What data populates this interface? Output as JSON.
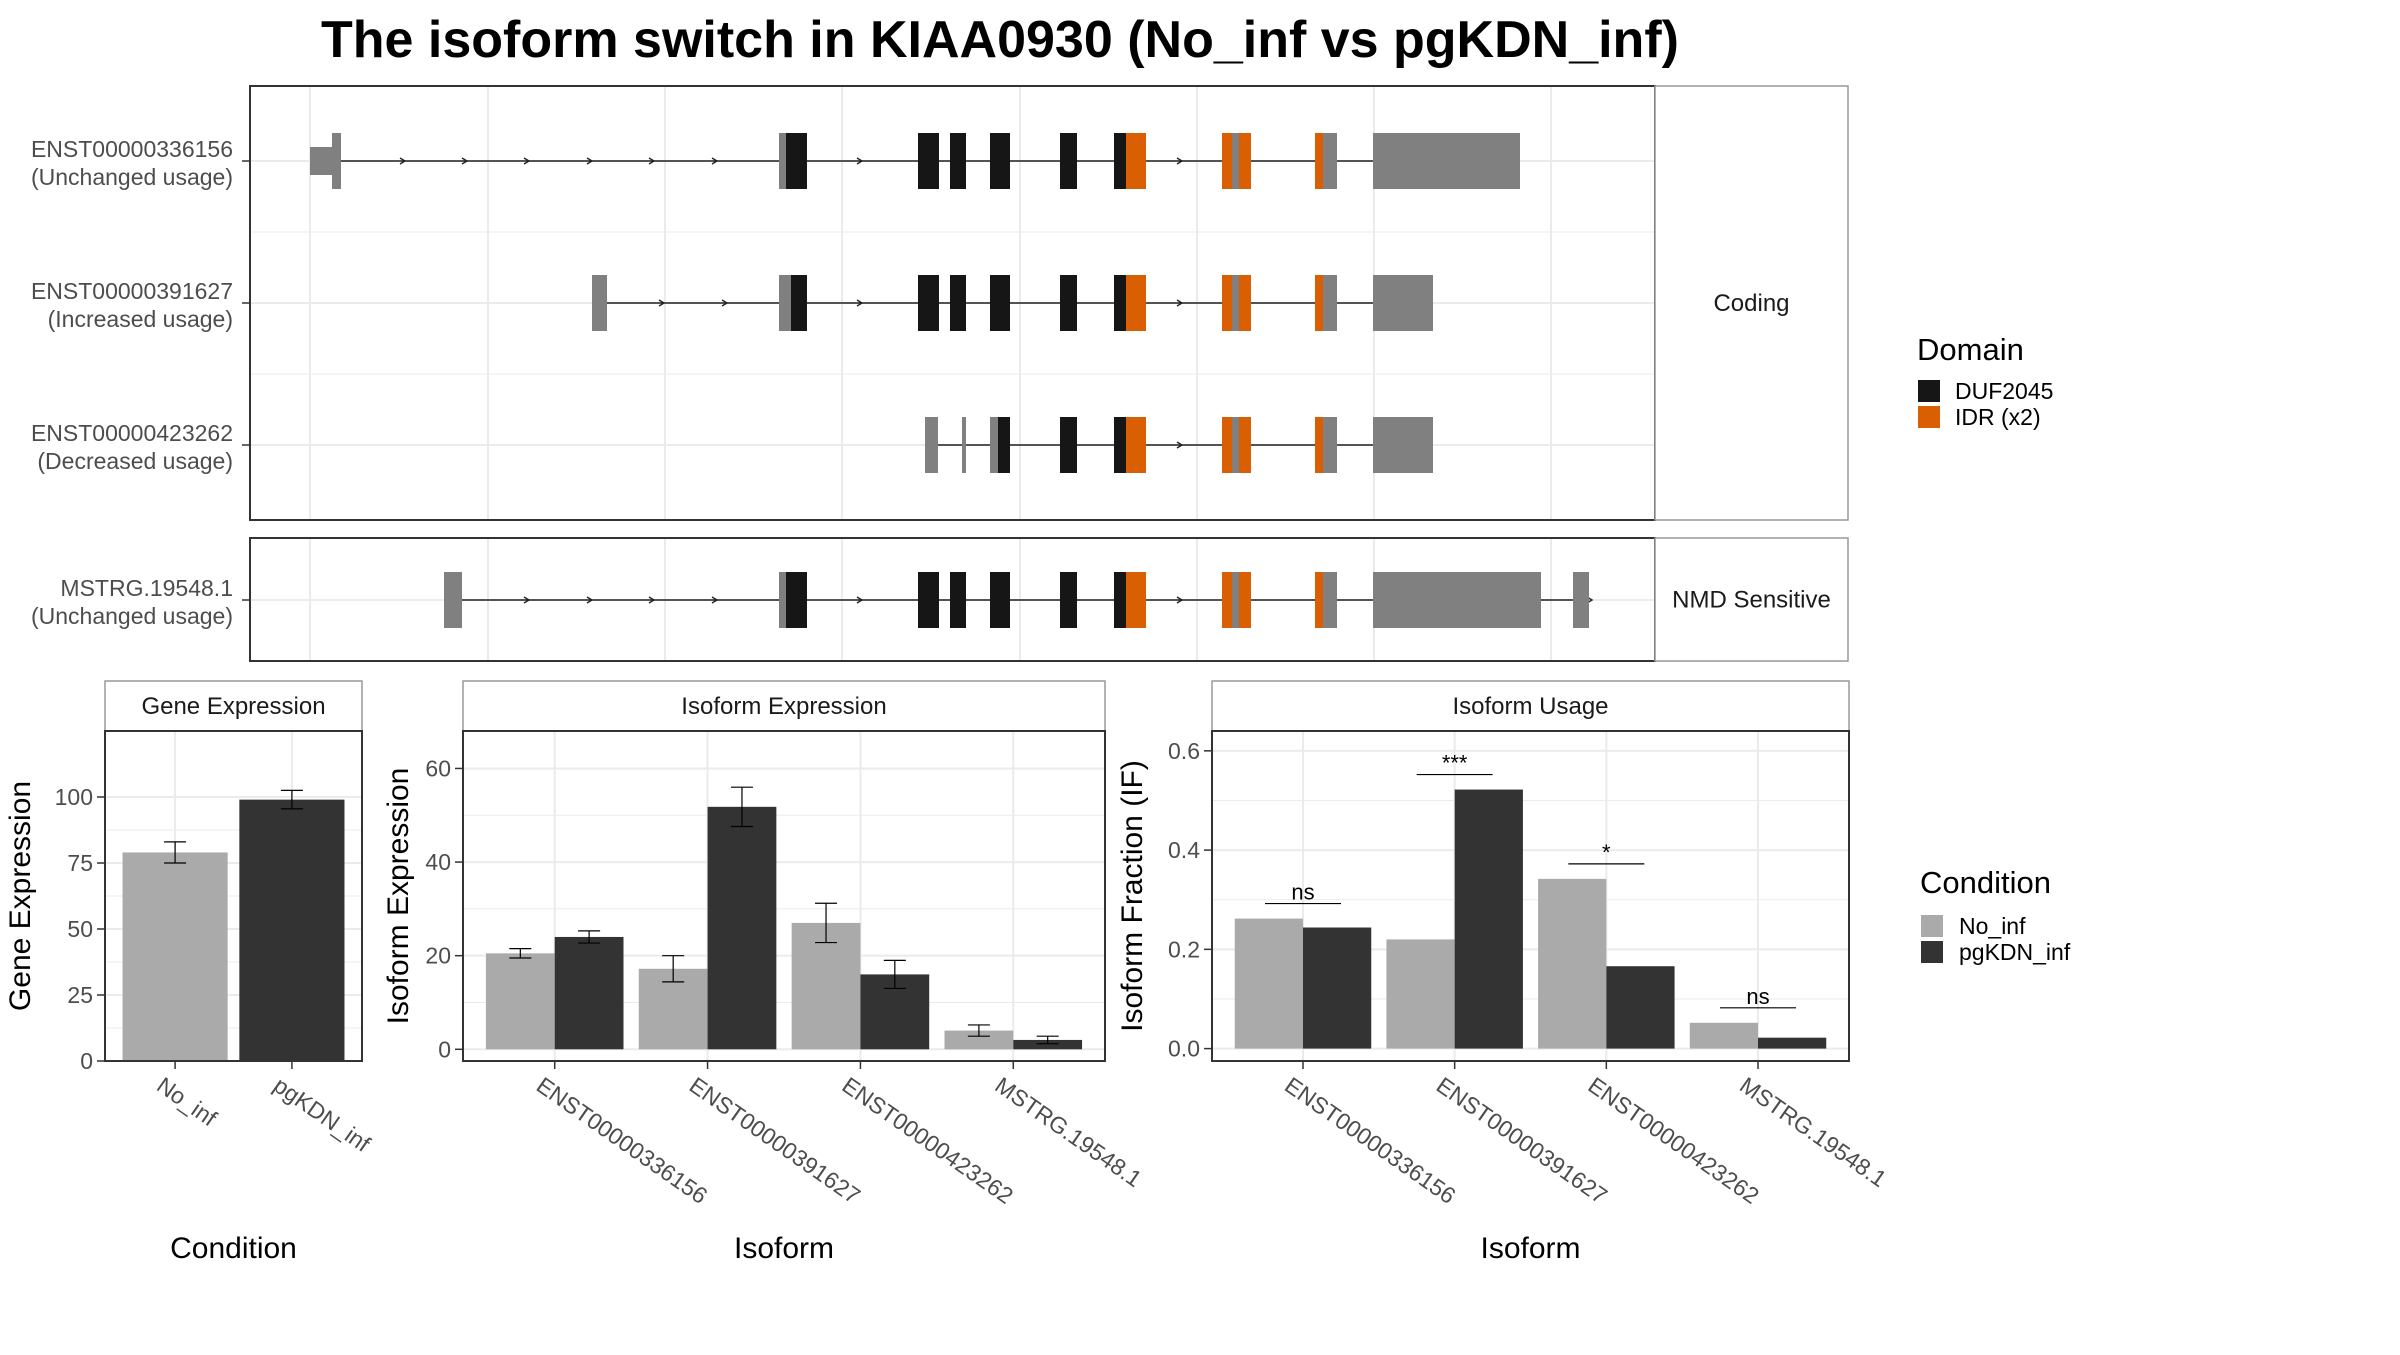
{
  "title": "The isoform switch in KIAA0930 (No_inf vs pgKDN_inf)",
  "colors": {
    "no_inf": "#aaaaaa",
    "pgkdn_inf": "#333333",
    "domain_duf": "#161616",
    "domain_idr": "#d95f02",
    "utr": "#808080",
    "panel_border": "#333333",
    "strip_border": "#999999",
    "grid": "#ebebeb"
  },
  "structure": {
    "coding_strip": "Coding",
    "nmd_strip": "NMD Sensitive",
    "transcripts": [
      {
        "id": "ENST00000336156",
        "usage": "(Unchanged usage)",
        "group": "coding"
      },
      {
        "id": "ENST00000391627",
        "usage": "(Increased usage)",
        "group": "coding"
      },
      {
        "id": "ENST00000423262",
        "usage": "(Decreased usage)",
        "group": "coding"
      },
      {
        "id": "MSTRG.19548.1",
        "usage": "(Unchanged usage)",
        "group": "nmd"
      }
    ]
  },
  "legends": {
    "domain": {
      "title": "Domain",
      "items": [
        "DUF2045",
        "IDR (x2)"
      ]
    },
    "condition": {
      "title": "Condition",
      "items": [
        "No_inf",
        "pgKDN_inf"
      ]
    }
  },
  "chart_data": [
    {
      "type": "bar",
      "title": "Gene Expression",
      "xlabel": "Condition",
      "ylabel": "Gene Expression",
      "categories": [
        "No_inf",
        "pgKDN_inf"
      ],
      "values": [
        79,
        99
      ],
      "errors": [
        4,
        3.5
      ],
      "ylim": [
        0,
        125
      ],
      "yticks": [
        0,
        25,
        50,
        75,
        100
      ]
    },
    {
      "type": "bar",
      "title": "Isoform Expression",
      "xlabel": "Isoform",
      "ylabel": "Isoform Expression",
      "categories": [
        "ENST00000336156",
        "ENST00000391627",
        "ENST00000423262",
        "MSTRG.19548.1"
      ],
      "series": [
        {
          "name": "No_inf",
          "values": [
            20.5,
            17.2,
            27,
            4
          ],
          "errors": [
            1,
            2.8,
            4.2,
            1.2
          ]
        },
        {
          "name": "pgKDN_inf",
          "values": [
            24,
            51.8,
            16,
            2
          ],
          "errors": [
            1.3,
            4.2,
            3,
            0.8
          ]
        }
      ],
      "ylim": [
        -2.5,
        68
      ],
      "yticks": [
        0,
        20,
        40,
        60
      ]
    },
    {
      "type": "bar",
      "title": "Isoform Usage",
      "xlabel": "Isoform",
      "ylabel": "Isoform Fraction (IF)",
      "categories": [
        "ENST00000336156",
        "ENST00000391627",
        "ENST00000423262",
        "MSTRG.19548.1"
      ],
      "series": [
        {
          "name": "No_inf",
          "values": [
            0.262,
            0.22,
            0.342,
            0.052
          ]
        },
        {
          "name": "pgKDN_inf",
          "values": [
            0.244,
            0.522,
            0.166,
            0.022
          ]
        }
      ],
      "significance": [
        "ns",
        "***",
        "*",
        "ns"
      ],
      "ylim": [
        -0.025,
        0.64
      ],
      "yticks": [
        0.0,
        0.2,
        0.4,
        0.6
      ]
    }
  ]
}
